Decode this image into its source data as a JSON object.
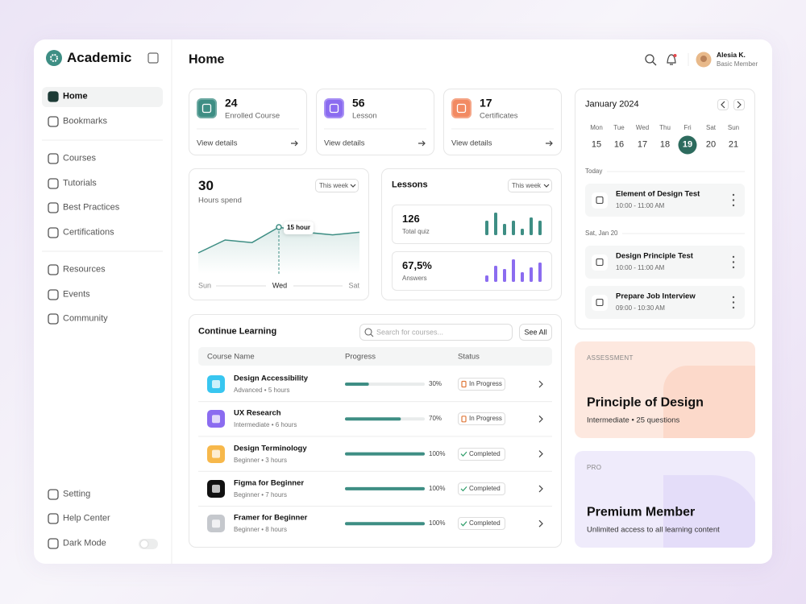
{
  "sidebar": {
    "brand": "Academic",
    "nav_top": [
      "Home",
      "Bookmarks"
    ],
    "nav_learn": [
      "Courses",
      "Tutorials",
      "Best Practices",
      "Certifications"
    ],
    "nav_more": [
      "Resources",
      "Events",
      "Community"
    ],
    "nav_bottom": [
      "Setting",
      "Help Center",
      "Dark Mode"
    ]
  },
  "header": {
    "title": "Home",
    "user_name": "Alesia K.",
    "user_role": "Basic Member"
  },
  "stats": [
    {
      "value": 24,
      "label": "Enrolled Course",
      "link": "View details"
    },
    {
      "value": 56,
      "label": "Lesson",
      "link": "View details"
    },
    {
      "value": 17,
      "label": "Certificates",
      "link": "View details"
    }
  ],
  "hours": {
    "value": 30,
    "label": "Hours spend",
    "period": "This week",
    "tooltip": "15 hour",
    "x_labels": [
      "Sun",
      "Wed",
      "Sat"
    ],
    "values": [
      5,
      10,
      9,
      15,
      13,
      12,
      13
    ]
  },
  "lessons": {
    "title": "Lessons",
    "period": "This week",
    "items": [
      {
        "value": 126,
        "label": "Total quiz",
        "bars": [
          9,
          14,
          7,
          9,
          4,
          11,
          9
        ]
      },
      {
        "value": "67,5%",
        "label": "Answers",
        "bars": [
          4,
          10,
          8,
          14,
          6,
          9,
          12
        ]
      }
    ]
  },
  "courses": {
    "title": "Continue Learning",
    "search_placeholder": "Search for courses...",
    "button": "See All",
    "columns": [
      "Course Name",
      "Progress",
      "Status"
    ],
    "rows": [
      {
        "name": "Design Accessibility",
        "meta": "Advanced • 5 hours",
        "progress": 30,
        "progress_label": "30%",
        "status": "In Progress"
      },
      {
        "name": "UX Research",
        "meta": "Intermediate • 6 hours",
        "progress": 70,
        "progress_label": "70%",
        "status": "In Progress"
      },
      {
        "name": "Design Terminology",
        "meta": "Beginner • 3 hours",
        "progress": 100,
        "progress_label": "100%",
        "status": "Completed"
      },
      {
        "name": "Figma for Beginner",
        "meta": "Beginner • 7 hours",
        "progress": 100,
        "progress_label": "100%",
        "status": "Completed"
      },
      {
        "name": "Framer for Beginner",
        "meta": "Beginner • 8 hours",
        "progress": 100,
        "progress_label": "100%",
        "status": "Completed"
      }
    ]
  },
  "calendar": {
    "month": "January 2024",
    "weekdays": [
      "Mon",
      "Tue",
      "Wed",
      "Thu",
      "Fri",
      "Sat",
      "Sun"
    ],
    "days": [
      15,
      16,
      17,
      18,
      19,
      20,
      21
    ],
    "selected_day": 19,
    "groups": [
      {
        "label": "Today",
        "events": [
          {
            "title": "Element of Design Test",
            "time": "10:00 - 11:00 AM"
          }
        ]
      },
      {
        "label": "Sat, Jan 20",
        "events": [
          {
            "title": "Design Principle Test",
            "time": "10:00 - 11:00 AM"
          },
          {
            "title": "Prepare Job Interview",
            "time": "09:00 - 10:30 AM"
          }
        ]
      }
    ]
  },
  "promos": [
    {
      "tag": "ASSESSMENT",
      "title": "Principle of Design",
      "subtitle": "Intermediate • 25 questions"
    },
    {
      "tag": "PRO",
      "title": "Premium Member",
      "subtitle": "Unlimited access to all learning content"
    }
  ]
}
